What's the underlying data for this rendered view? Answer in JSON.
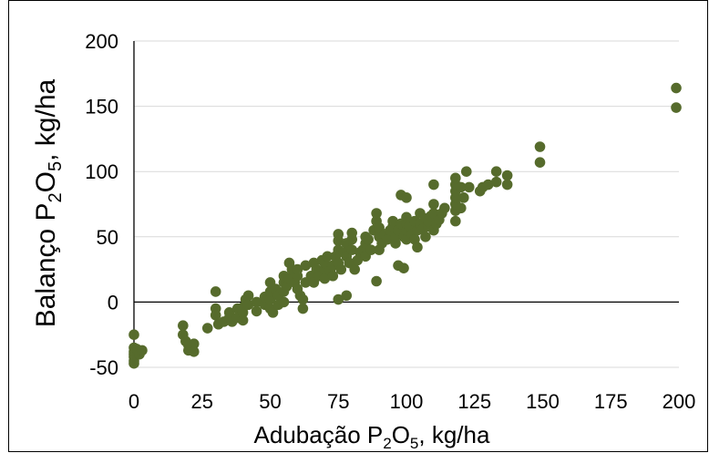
{
  "chart_data": {
    "type": "scatter",
    "title": "",
    "xlabel": {
      "prefix": "Adubação P",
      "sub1": "2",
      "mid": "O",
      "sub2": "5",
      "suffix": ", kg/ha"
    },
    "ylabel": {
      "prefix": "Balanço P",
      "sub1": "2",
      "mid": "O",
      "sub2": "5",
      "suffix": ", kg/ha"
    },
    "xlim": [
      0,
      200
    ],
    "ylim": [
      -50,
      200
    ],
    "xticks": [
      0,
      25,
      50,
      75,
      100,
      125,
      150,
      175,
      200
    ],
    "yticks": [
      -50,
      0,
      50,
      100,
      150,
      200
    ],
    "grid": "horizontal",
    "legend": "none",
    "marker_color": "#566b2c",
    "series": [
      {
        "points": [
          [
            0,
            -25
          ],
          [
            0,
            -35
          ],
          [
            0,
            -38
          ],
          [
            0,
            -40
          ],
          [
            0,
            -42
          ],
          [
            0,
            -45
          ],
          [
            0,
            -47
          ],
          [
            1,
            -36
          ],
          [
            2,
            -40
          ],
          [
            3,
            -37
          ],
          [
            18,
            -18
          ],
          [
            18,
            -25
          ],
          [
            19,
            -30
          ],
          [
            20,
            -33
          ],
          [
            20,
            -37
          ],
          [
            22,
            -32
          ],
          [
            22,
            -38
          ],
          [
            27,
            -20
          ],
          [
            30,
            8
          ],
          [
            30,
            -5
          ],
          [
            30,
            -10
          ],
          [
            31,
            -17
          ],
          [
            33,
            -15
          ],
          [
            35,
            -8
          ],
          [
            35,
            -12
          ],
          [
            36,
            -15
          ],
          [
            38,
            -5
          ],
          [
            38,
            -12
          ],
          [
            40,
            -4
          ],
          [
            40,
            -8
          ],
          [
            40,
            -14
          ],
          [
            41,
            2
          ],
          [
            42,
            -2
          ],
          [
            42,
            5
          ],
          [
            45,
            -7
          ],
          [
            45,
            0
          ],
          [
            48,
            -2
          ],
          [
            48,
            4
          ],
          [
            50,
            -5
          ],
          [
            50,
            2
          ],
          [
            50,
            8
          ],
          [
            50,
            15
          ],
          [
            51,
            -8
          ],
          [
            52,
            10
          ],
          [
            53,
            5
          ],
          [
            53,
            -2
          ],
          [
            55,
            0
          ],
          [
            55,
            8
          ],
          [
            55,
            15
          ],
          [
            55,
            20
          ],
          [
            56,
            12
          ],
          [
            57,
            18
          ],
          [
            57,
            30
          ],
          [
            58,
            25
          ],
          [
            59,
            15
          ],
          [
            60,
            10
          ],
          [
            60,
            20
          ],
          [
            60,
            25
          ],
          [
            61,
            5
          ],
          [
            62,
            -5
          ],
          [
            62,
            2
          ],
          [
            63,
            15
          ],
          [
            63,
            28
          ],
          [
            65,
            20
          ],
          [
            66,
            30
          ],
          [
            66,
            15
          ],
          [
            67,
            25
          ],
          [
            68,
            20
          ],
          [
            69,
            32
          ],
          [
            70,
            18
          ],
          [
            70,
            25
          ],
          [
            70,
            30
          ],
          [
            71,
            35
          ],
          [
            72,
            24
          ],
          [
            73,
            20
          ],
          [
            73,
            28
          ],
          [
            74,
            35
          ],
          [
            75,
            2
          ],
          [
            75,
            30
          ],
          [
            75,
            40
          ],
          [
            75,
            47
          ],
          [
            75,
            52
          ],
          [
            76,
            25
          ],
          [
            77,
            38
          ],
          [
            78,
            5
          ],
          [
            78,
            35
          ],
          [
            78,
            45
          ],
          [
            79,
            30
          ],
          [
            80,
            40
          ],
          [
            80,
            48
          ],
          [
            80,
            53
          ],
          [
            81,
            25
          ],
          [
            82,
            32
          ],
          [
            83,
            38
          ],
          [
            84,
            40
          ],
          [
            85,
            35
          ],
          [
            85,
            45
          ],
          [
            85,
            50
          ],
          [
            86,
            48
          ],
          [
            87,
            40
          ],
          [
            88,
            55
          ],
          [
            89,
            16
          ],
          [
            89,
            62
          ],
          [
            89,
            68
          ],
          [
            90,
            40
          ],
          [
            90,
            50
          ],
          [
            90,
            57
          ],
          [
            91,
            45
          ],
          [
            92,
            52
          ],
          [
            93,
            48
          ],
          [
            94,
            55
          ],
          [
            95,
            58
          ],
          [
            95,
            62
          ],
          [
            96,
            45
          ],
          [
            96,
            50
          ],
          [
            97,
            55
          ],
          [
            97,
            28
          ],
          [
            98,
            60
          ],
          [
            98,
            82
          ],
          [
            99,
            26
          ],
          [
            99,
            50
          ],
          [
            100,
            48
          ],
          [
            100,
            55
          ],
          [
            100,
            60
          ],
          [
            100,
            65
          ],
          [
            100,
            80
          ],
          [
            101,
            58
          ],
          [
            102,
            52
          ],
          [
            103,
            48
          ],
          [
            103,
            62
          ],
          [
            104,
            42
          ],
          [
            104,
            55
          ],
          [
            105,
            60
          ],
          [
            105,
            68
          ],
          [
            106,
            56
          ],
          [
            107,
            50
          ],
          [
            107,
            64
          ],
          [
            108,
            58
          ],
          [
            108,
            62
          ],
          [
            109,
            66
          ],
          [
            110,
            55
          ],
          [
            110,
            68
          ],
          [
            110,
            75
          ],
          [
            110,
            90
          ],
          [
            111,
            60
          ],
          [
            112,
            63
          ],
          [
            113,
            68
          ],
          [
            114,
            72
          ],
          [
            118,
            62
          ],
          [
            118,
            70
          ],
          [
            118,
            75
          ],
          [
            118,
            80
          ],
          [
            118,
            85
          ],
          [
            118,
            90
          ],
          [
            118,
            95
          ],
          [
            120,
            72
          ],
          [
            120,
            88
          ],
          [
            121,
            80
          ],
          [
            122,
            100
          ],
          [
            123,
            88
          ],
          [
            127,
            85
          ],
          [
            128,
            88
          ],
          [
            130,
            90
          ],
          [
            133,
            100
          ],
          [
            133,
            92
          ],
          [
            137,
            97
          ],
          [
            137,
            90
          ],
          [
            149,
            119
          ],
          [
            149,
            107
          ],
          [
            199,
            164
          ],
          [
            199,
            149
          ]
        ]
      }
    ]
  }
}
